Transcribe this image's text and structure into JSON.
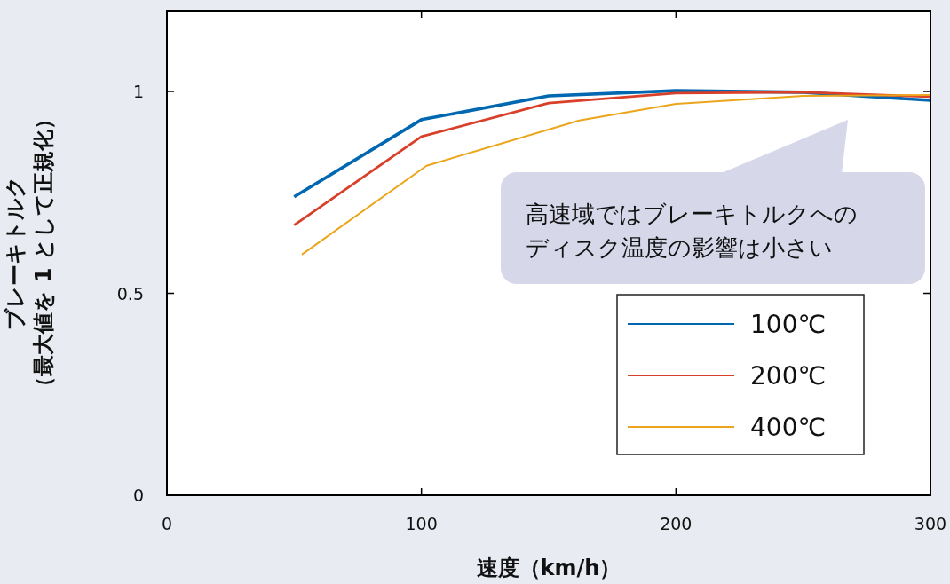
{
  "chart_data": {
    "type": "line",
    "xlabel": "速度（km/h）",
    "ylabel": "ブレーキトルク（最大値を 1 として正規化）",
    "xlim": [
      0,
      300
    ],
    "ylim": [
      0,
      1.2
    ],
    "xticks": [
      0,
      100,
      200,
      300
    ],
    "yticks": [
      0,
      0.5,
      1
    ],
    "grid": false,
    "legend": "bottom right",
    "marker": "none",
    "line_style": "solid",
    "annotations": [
      "高速域ではブレーキトルクへのディスク温度の影響は小さい"
    ],
    "series": [
      {
        "name": "100℃",
        "color": "#0068b0",
        "x": [
          50,
          100,
          150,
          200,
          250,
          300
        ],
        "values": [
          0.739,
          0.93,
          0.989,
          1.002,
          0.998,
          0.978
        ]
      },
      {
        "name": "200℃",
        "color": "#d9402a",
        "x": [
          50,
          100,
          150,
          200,
          250,
          300
        ],
        "values": [
          0.669,
          0.888,
          0.971,
          0.996,
          0.998,
          0.987
        ]
      },
      {
        "name": "400℃",
        "color": "#eba51a",
        "x": [
          53,
          102,
          162,
          200,
          250,
          300
        ],
        "values": [
          0.596,
          0.816,
          0.928,
          0.969,
          0.989,
          0.991
        ]
      }
    ]
  }
}
